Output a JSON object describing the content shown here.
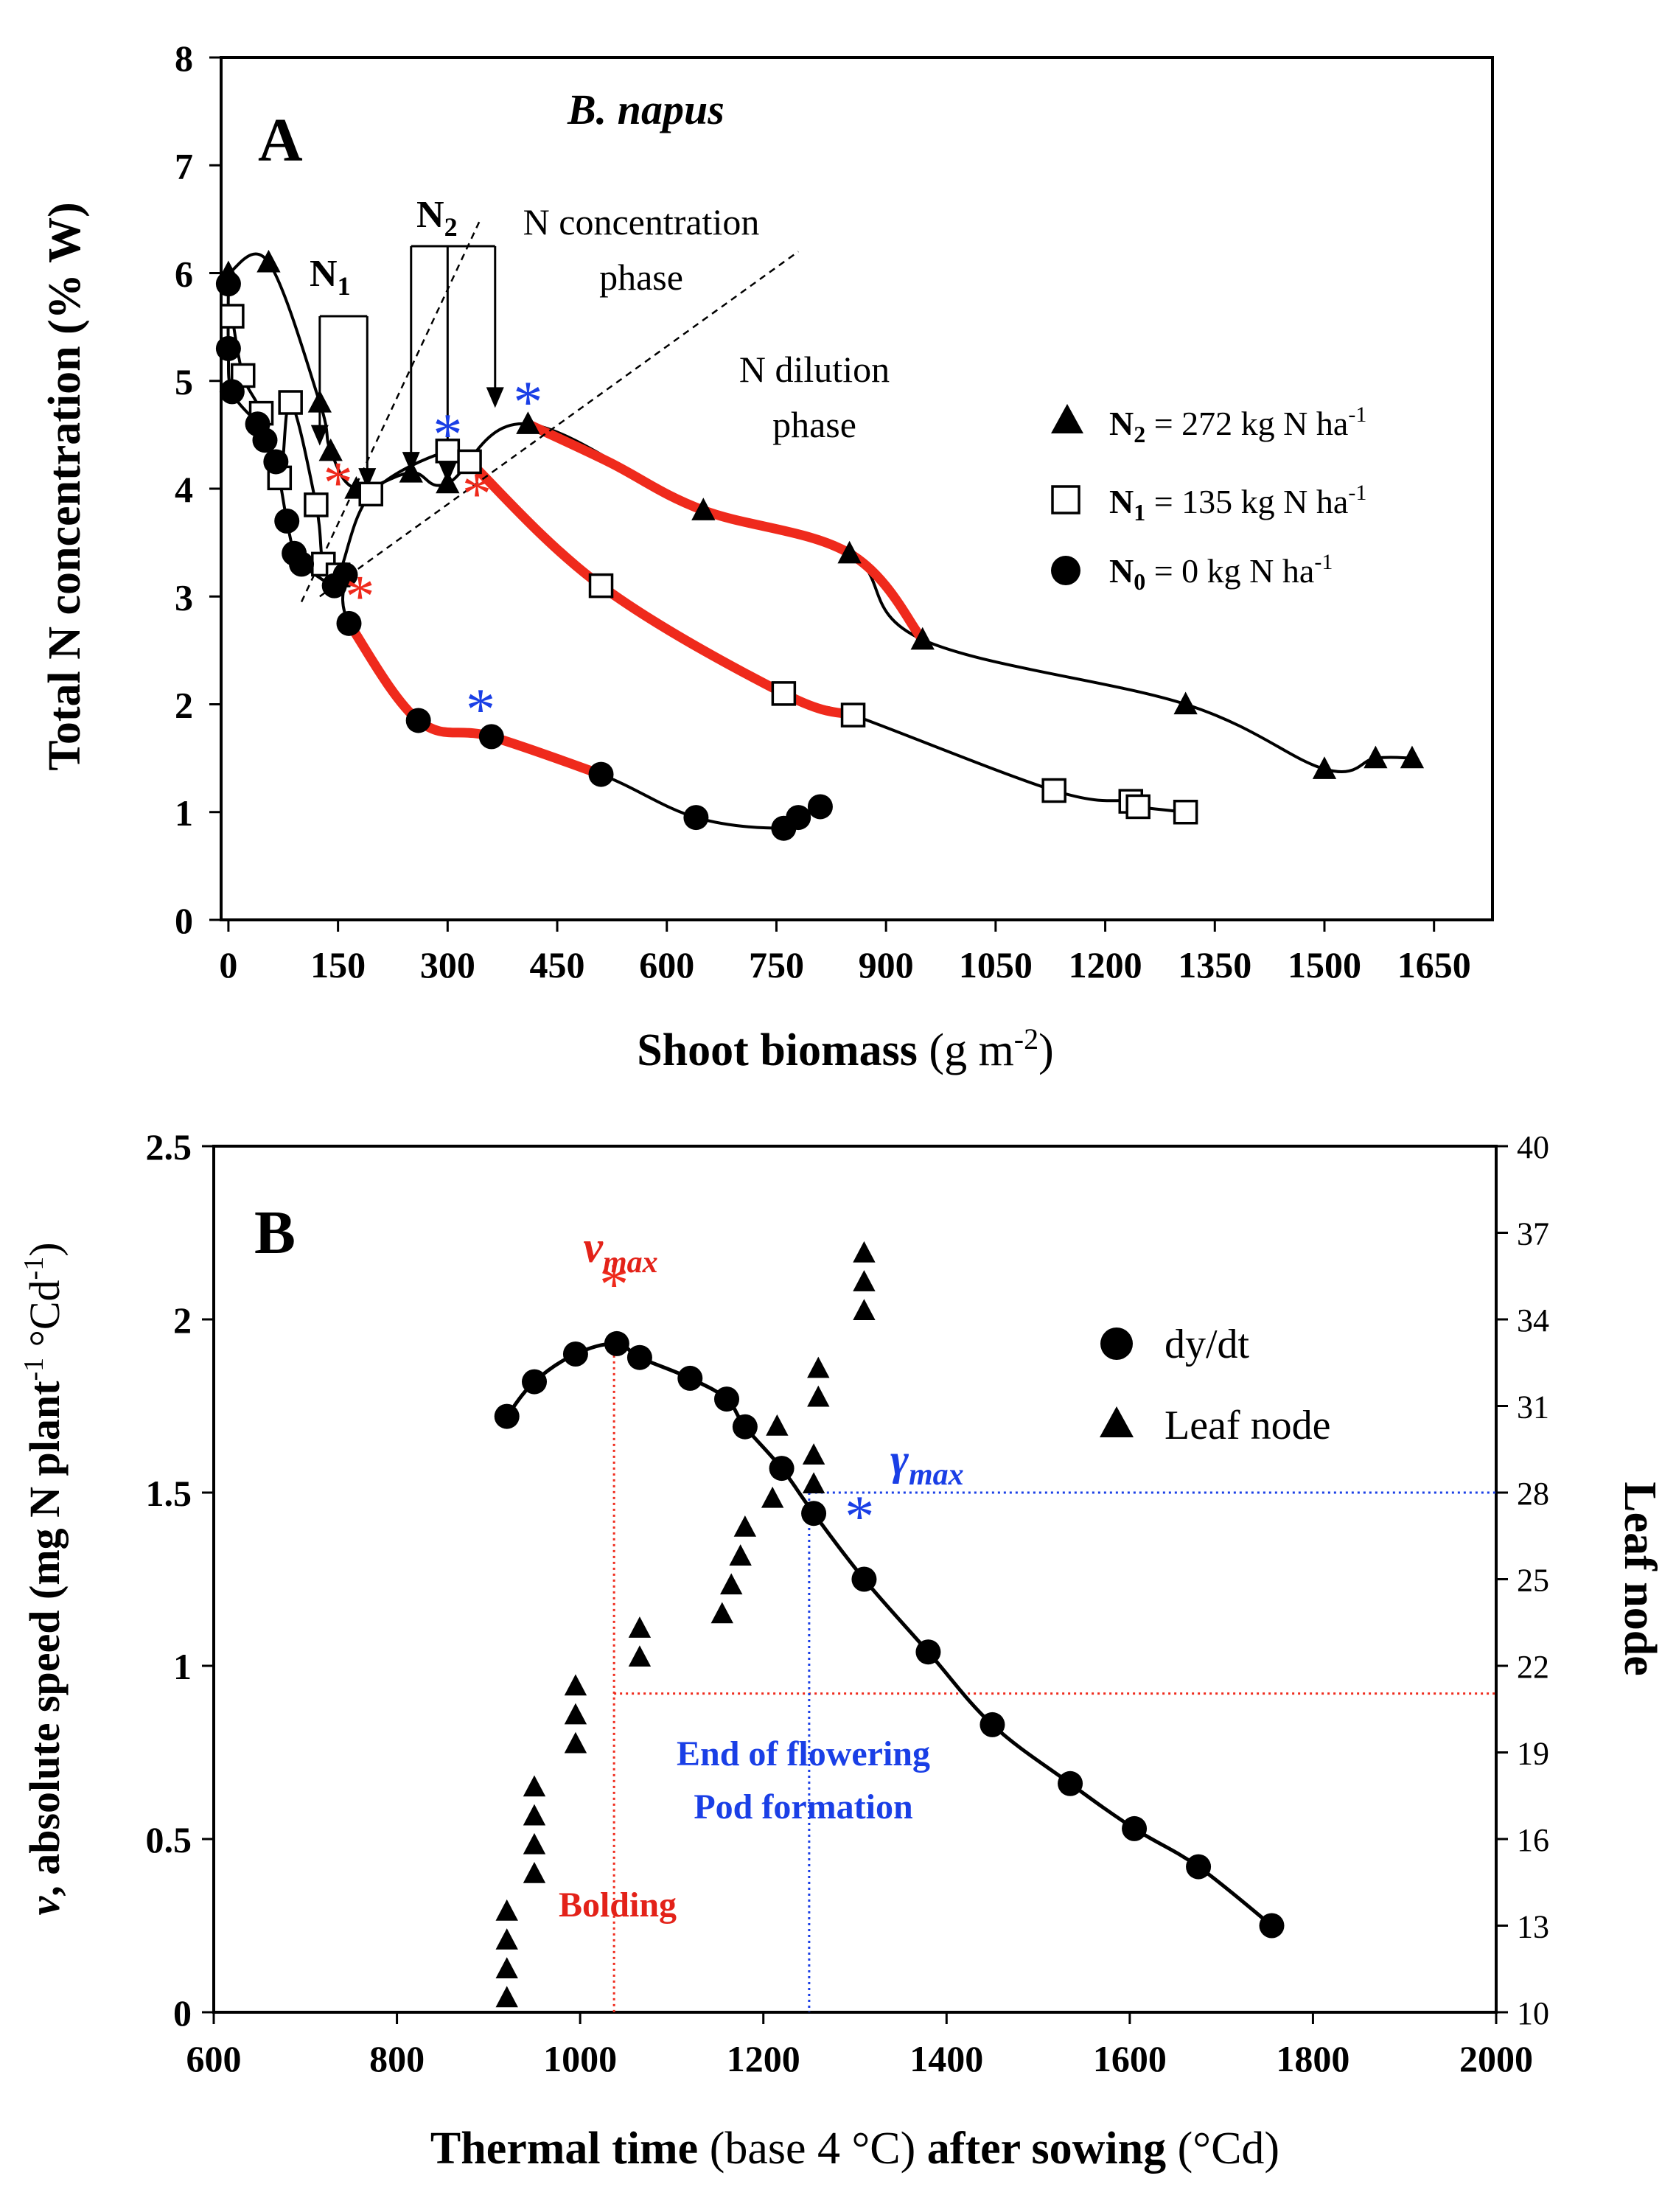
{
  "chart_data": [
    {
      "type": "line",
      "panel_label": "A",
      "title": "B. napus",
      "xlabel_bold": "Shoot biomass",
      "xlabel_unit": "(g m",
      "xlabel_unit_sup": "-2",
      "xlabel_unit_end": ")",
      "ylabel": "Total N concentration (% W)",
      "xlim": [
        -10,
        1730
      ],
      "ylim": [
        0,
        8
      ],
      "xticks": [
        0,
        150,
        300,
        450,
        600,
        750,
        900,
        1050,
        1200,
        1350,
        1500,
        1650
      ],
      "yticks": [
        0,
        1,
        2,
        3,
        4,
        5,
        6,
        7,
        8
      ],
      "series": [
        {
          "name": "N2",
          "legend": {
            "main": "N",
            "sub": "2",
            "rest": " = 272 kg N ha",
            "sup": "-1"
          },
          "marker": "triangle",
          "points": [
            [
              0,
              6.0
            ],
            [
              55,
              6.1
            ],
            [
              125,
              4.8
            ],
            [
              140,
              4.35
            ],
            [
              175,
              4.0
            ],
            [
              250,
              4.15
            ],
            [
              300,
              4.05
            ],
            [
              410,
              4.6
            ],
            [
              650,
              3.8
            ],
            [
              850,
              3.4
            ],
            [
              950,
              2.6
            ],
            [
              1310,
              2.0
            ],
            [
              1500,
              1.4
            ],
            [
              1570,
              1.5
            ],
            [
              1620,
              1.5
            ]
          ],
          "red_segment": [
            [
              410,
              4.6
            ],
            [
              520,
              4.25
            ],
            [
              650,
              3.8
            ],
            [
              850,
              3.4
            ],
            [
              950,
              2.6
            ]
          ]
        },
        {
          "name": "N1",
          "legend": {
            "main": "N",
            "sub": "1",
            "rest": " = 135 kg N ha",
            "sup": "-1"
          },
          "marker": "square",
          "points": [
            [
              5,
              5.6
            ],
            [
              20,
              5.05
            ],
            [
              45,
              4.7
            ],
            [
              70,
              4.1
            ],
            [
              85,
              4.8
            ],
            [
              120,
              3.85
            ],
            [
              130,
              3.3
            ],
            [
              150,
              3.2
            ],
            [
              195,
              3.95
            ],
            [
              300,
              4.35
            ],
            [
              330,
              4.25
            ],
            [
              510,
              3.1
            ],
            [
              760,
              2.1
            ],
            [
              855,
              1.9
            ],
            [
              1130,
              1.2
            ],
            [
              1235,
              1.1
            ],
            [
              1245,
              1.05
            ],
            [
              1310,
              1.0
            ]
          ],
          "red_segment": [
            [
              330,
              4.25
            ],
            [
              510,
              3.1
            ],
            [
              760,
              2.1
            ],
            [
              855,
              1.9
            ]
          ]
        },
        {
          "name": "N0",
          "legend": {
            "main": "N",
            "sub": "0",
            "rest": " = 0 kg N ha",
            "sup": "-1"
          },
          "marker": "circle",
          "points": [
            [
              0,
              5.9
            ],
            [
              0,
              5.3
            ],
            [
              5,
              4.9
            ],
            [
              40,
              4.6
            ],
            [
              50,
              4.45
            ],
            [
              65,
              4.25
            ],
            [
              80,
              3.7
            ],
            [
              90,
              3.4
            ],
            [
              100,
              3.3
            ],
            [
              145,
              3.1
            ],
            [
              160,
              3.2
            ],
            [
              165,
              2.75
            ],
            [
              260,
              1.85
            ],
            [
              360,
              1.7
            ],
            [
              510,
              1.35
            ],
            [
              640,
              0.95
            ],
            [
              760,
              0.85
            ],
            [
              780,
              0.95
            ],
            [
              810,
              1.05
            ]
          ],
          "red_segment": [
            [
              165,
              2.75
            ],
            [
              260,
              1.85
            ],
            [
              360,
              1.7
            ],
            [
              510,
              1.35
            ]
          ]
        }
      ],
      "annotations": {
        "n1_label": {
          "main": "N",
          "sub": "1"
        },
        "n2_label": {
          "main": "N",
          "sub": "2"
        },
        "conc_phase_1": "N concentration",
        "conc_phase_2": "phase",
        "dil_phase_1": "N dilution",
        "dil_phase_2": "phase",
        "asterisk": "*",
        "red_asterisks": [
          [
            150,
            4.05
          ],
          [
            180,
            3.0
          ],
          [
            340,
            3.95
          ]
        ],
        "blue_asterisks": [
          [
            300,
            4.5
          ],
          [
            345,
            1.95
          ],
          [
            410,
            4.8
          ]
        ]
      }
    },
    {
      "type": "line",
      "panel_label": "B",
      "ylabel_italic": "v",
      "ylabel": ", absolute speed (mg N plant",
      "ylabel_sup1": "-1",
      "ylabel_mid": " °Cd",
      "ylabel_sup2": "-1",
      "ylabel_end": ")",
      "y2label": "Leaf node",
      "xlabel_bold1": "Thermal time",
      "xlabel_plain1": " (base 4 °C) ",
      "xlabel_bold2": "after sowing",
      "xlabel_plain2": " (°Cd)",
      "xlim": [
        600,
        2000
      ],
      "ylim": [
        0,
        2.5
      ],
      "y2lim": [
        10,
        40
      ],
      "xticks": [
        600,
        800,
        1000,
        1200,
        1400,
        1600,
        1800,
        2000
      ],
      "yticks": [
        0,
        0.5,
        1,
        1.5,
        2,
        2.5
      ],
      "yticklabels": [
        "0",
        "0.5",
        "1",
        "1.5",
        "2",
        "2.5"
      ],
      "y2ticks": [
        10,
        13,
        16,
        19,
        22,
        25,
        28,
        31,
        34,
        37,
        40
      ],
      "series": [
        {
          "name": "dy/dt",
          "legend": "dy/dt",
          "marker": "circle",
          "axis": "left",
          "x": [
            920,
            950,
            995,
            1040,
            1065,
            1120,
            1160,
            1180,
            1220,
            1255,
            1310,
            1380,
            1450,
            1535,
            1605,
            1675,
            1755
          ],
          "y": [
            1.72,
            1.82,
            1.9,
            1.93,
            1.89,
            1.83,
            1.77,
            1.69,
            1.57,
            1.44,
            1.25,
            1.04,
            0.83,
            0.66,
            0.53,
            0.42,
            0.25
          ]
        },
        {
          "name": "Leaf node",
          "legend": "Leaf node",
          "marker": "triangle",
          "axis": "right",
          "x": [
            920,
            920,
            920,
            920,
            950,
            950,
            950,
            950,
            995,
            995,
            995,
            1065,
            1065,
            1155,
            1165,
            1175,
            1180,
            1210,
            1215,
            1255,
            1255,
            1260,
            1260,
            1310,
            1310,
            1310
          ],
          "y": [
            10.5,
            11.5,
            12.5,
            13.5,
            14.8,
            15.8,
            16.8,
            17.8,
            19.3,
            20.3,
            21.3,
            22.3,
            23.3,
            23.8,
            24.8,
            25.8,
            26.8,
            27.8,
            30.3,
            28.3,
            29.3,
            31.3,
            32.3,
            34.3,
            35.3,
            36.3
          ]
        }
      ],
      "annotations": {
        "vmax": "v",
        "vmax_sub": "max",
        "gamma": "γ",
        "gamma_sub": "max",
        "asterisk": "*",
        "vmax_point": [
          1037,
          1.93
        ],
        "gamma_point": [
          1250,
          1.44
        ],
        "red_hline_y": 0.92,
        "blue_hline_y": 1.5,
        "bolding": "Bolding",
        "end_flowering": "End of flowering",
        "pod_formation": "Pod formation"
      }
    }
  ]
}
